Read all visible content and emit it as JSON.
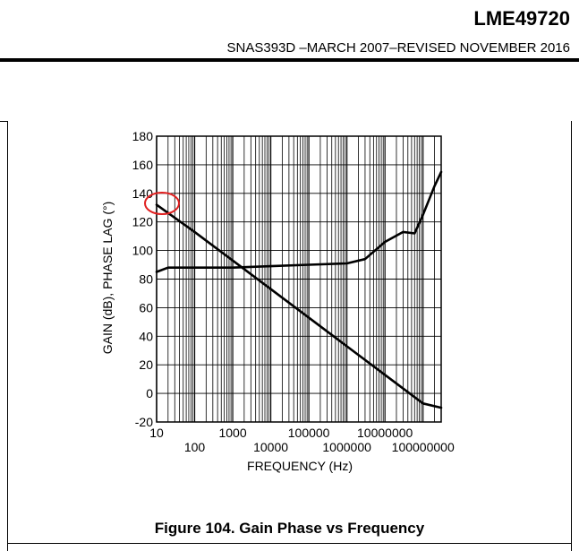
{
  "header": {
    "title": "LME49720",
    "subtitle": "SNAS393D –MARCH 2007–REVISED NOVEMBER 2016"
  },
  "figure": {
    "caption": "Figure 104. Gain Phase vs Frequency"
  },
  "colors": {
    "curve": "#000000",
    "annotation": "#e02020"
  },
  "chart_data": {
    "type": "line",
    "xscale": "log",
    "xlim": [
      10,
      300000000
    ],
    "ylim": [
      -20,
      180
    ],
    "xlabel": "FREQUENCY (Hz)",
    "ylabel": "GAIN (dB), PHASE LAG (°)",
    "grid": true,
    "yticks": [
      "180",
      "160",
      "140",
      "120",
      "100",
      "80",
      "60",
      "40",
      "20",
      "0",
      "-20"
    ],
    "xticks_upper": [
      "10",
      "1000",
      "100000",
      "10000000"
    ],
    "xticks_lower": [
      "100",
      "10000",
      "1000000",
      "100000000"
    ],
    "series": [
      {
        "role": "gain",
        "x": [
          10,
          100,
          1000,
          10000,
          100000,
          1000000,
          10000000,
          100000000,
          300000000
        ],
        "y": [
          132,
          113,
          93,
          73,
          53,
          33,
          13,
          -7,
          -10
        ]
      },
      {
        "role": "phase",
        "x": [
          10,
          20,
          100,
          1000,
          10000,
          100000,
          1000000,
          3000000,
          10000000,
          30000000,
          60000000,
          100000000,
          200000000,
          300000000
        ],
        "y": [
          85,
          88,
          88,
          88,
          89,
          90,
          91,
          94,
          106,
          113,
          112,
          125,
          145,
          155
        ]
      }
    ]
  }
}
